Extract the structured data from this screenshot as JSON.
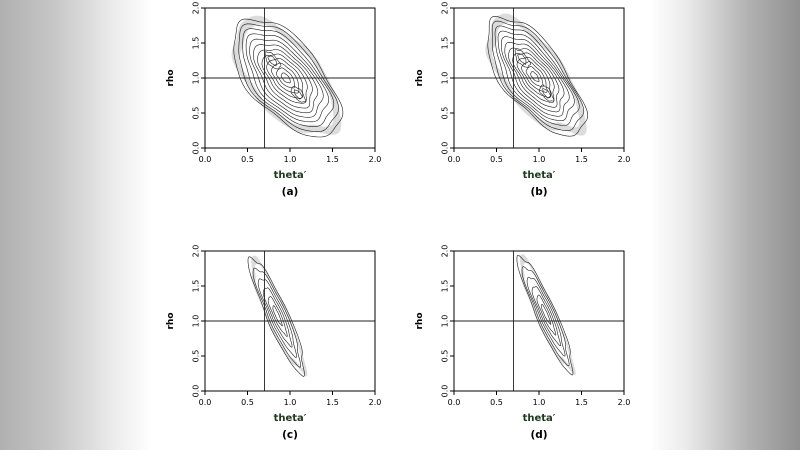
{
  "page": {
    "background_color": "#ffffff",
    "left_strip_edge_color": "#b0b0b0",
    "right_strip_edge_color": "#909090"
  },
  "chart_data": {
    "type": "contour",
    "description": "2x2 grid of kernel-density contour plots of samples in (theta', rho) space; each panel has reference cross-hair lines at theta'=0.7 and rho=1.0; panels (a) and (b) show broad diagonal density clouds, panels (c) and (d) show narrow diagonal ridges",
    "axis_label_color": "#1a3a1a",
    "text_color": "#000000",
    "contour_color": "#1a1a1a",
    "shade_color": "#dcdcdc",
    "crosshair_color": "#222222",
    "panels": [
      {
        "label": "(a)",
        "xlabel": "theta′",
        "ylabel": "rho",
        "xlim": [
          0,
          2
        ],
        "ylim": [
          0,
          2
        ],
        "xticks": [
          "0.0",
          "0.5",
          "1.0",
          "1.5",
          "2.0"
        ],
        "yticks": [
          "0.0",
          "0.5",
          "1.0",
          "1.5",
          "2.0"
        ],
        "crosshair": {
          "x": 0.7,
          "y": 1.0
        },
        "density_ridge": {
          "center": [
            0.95,
            1.0
          ],
          "angle_deg": -58,
          "semi_major": 0.95,
          "semi_minor": 0.45,
          "levels": 12,
          "wobble": 0.04,
          "shaded": true
        }
      },
      {
        "label": "(b)",
        "xlabel": "theta′",
        "ylabel": "rho",
        "xlim": [
          0,
          2
        ],
        "ylim": [
          0,
          2
        ],
        "xticks": [
          "0.0",
          "0.5",
          "1.0",
          "1.5",
          "2.0"
        ],
        "yticks": [
          "0.0",
          "0.5",
          "1.0",
          "1.5",
          "2.0"
        ],
        "crosshair": {
          "x": 0.7,
          "y": 1.0
        },
        "density_ridge": {
          "center": [
            0.95,
            1.02
          ],
          "angle_deg": -60,
          "semi_major": 0.95,
          "semi_minor": 0.38,
          "levels": 12,
          "wobble": 0.05,
          "shaded": true
        }
      },
      {
        "label": "(c)",
        "xlabel": "theta′",
        "ylabel": "rho",
        "xlim": [
          0,
          2
        ],
        "ylim": [
          0,
          2
        ],
        "xticks": [
          "0.0",
          "0.5",
          "1.0",
          "1.5",
          "2.0"
        ],
        "yticks": [
          "0.0",
          "0.5",
          "1.0",
          "1.5",
          "2.0"
        ],
        "crosshair": {
          "x": 0.7,
          "y": 1.0
        },
        "density_ridge": {
          "center": [
            0.85,
            1.08
          ],
          "angle_deg": -70,
          "semi_major": 0.88,
          "semi_minor": 0.13,
          "levels": 6,
          "wobble": 0.05,
          "shaded": true
        }
      },
      {
        "label": "(d)",
        "xlabel": "theta′",
        "ylabel": "rho",
        "xlim": [
          0,
          2
        ],
        "ylim": [
          0,
          2
        ],
        "xticks": [
          "0.0",
          "0.5",
          "1.0",
          "1.5",
          "2.0"
        ],
        "yticks": [
          "0.0",
          "0.5",
          "1.0",
          "1.5",
          "2.0"
        ],
        "crosshair": {
          "x": 0.7,
          "y": 1.0
        },
        "density_ridge": {
          "center": [
            1.08,
            1.1
          ],
          "angle_deg": -70,
          "semi_major": 0.88,
          "semi_minor": 0.12,
          "levels": 6,
          "wobble": 0.05,
          "shaded": true
        }
      }
    ]
  }
}
